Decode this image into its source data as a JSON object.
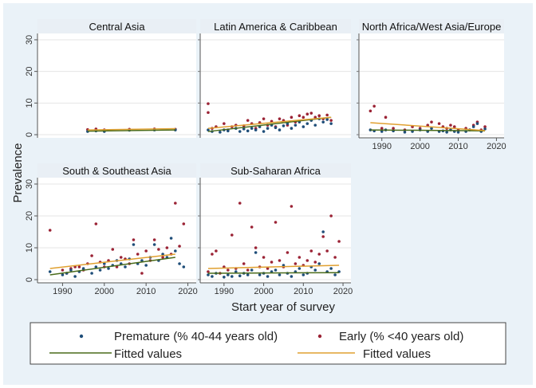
{
  "chart_data": {
    "type": "scatter",
    "ylabel": "Prevalence",
    "xlabel": "Start year of survey",
    "xlim": [
      1984,
      2022
    ],
    "ylim": [
      -1,
      32
    ],
    "x_ticks": [
      1990,
      2000,
      2010,
      2020
    ],
    "x_tick_labels": [
      "1990",
      "2000",
      "2010",
      "2020"
    ],
    "y_ticks": [
      0,
      10,
      20,
      30
    ],
    "y_tick_labels": [
      "0",
      "10",
      "20",
      "30"
    ],
    "legend": {
      "placement": "bottom",
      "entries": [
        {
          "label": "Premature (% 40-44 years old)",
          "kind": "marker",
          "color": "#1f4e79"
        },
        {
          "label": "Early (% <40 years old)",
          "kind": "marker",
          "color": "#9b2335"
        },
        {
          "label": "Fitted values",
          "kind": "line",
          "color": "#4a6b1a"
        },
        {
          "label": "Fitted values",
          "kind": "line",
          "color": "#e0a030"
        }
      ]
    },
    "colors": {
      "premature": "#1f4e79",
      "early": "#9b2335",
      "fit_premature": "#4a6b1a",
      "fit_early": "#e0a030",
      "panel_header": "#e9eff5",
      "outer_bg": "#eaf2f8"
    },
    "panels": [
      {
        "title": "Central Asia",
        "premature": [
          [
            1996,
            1.0
          ],
          [
            1998,
            1.2
          ],
          [
            2000,
            1.0
          ],
          [
            2006,
            1.4
          ],
          [
            2012,
            1.5
          ],
          [
            2017,
            1.5
          ]
        ],
        "early": [
          [
            1996,
            1.6
          ],
          [
            1998,
            1.8
          ],
          [
            2000,
            1.5
          ],
          [
            2006,
            1.7
          ],
          [
            2012,
            1.8
          ],
          [
            2017,
            1.7
          ]
        ],
        "fit_premature": [
          [
            1996,
            1.1
          ],
          [
            2017,
            1.5
          ]
        ],
        "fit_early": [
          [
            1996,
            1.5
          ],
          [
            2017,
            1.9
          ]
        ]
      },
      {
        "title": "Latin America & Caribbean",
        "premature": [
          [
            1986,
            1.5
          ],
          [
            1987,
            1.0
          ],
          [
            1989,
            0.8
          ],
          [
            1990,
            1.5
          ],
          [
            1991,
            1.2
          ],
          [
            1993,
            2.0
          ],
          [
            1994,
            1.0
          ],
          [
            1995,
            1.8
          ],
          [
            1996,
            1.2
          ],
          [
            1997,
            2.0
          ],
          [
            1998,
            1.5
          ],
          [
            1999,
            2.5
          ],
          [
            2000,
            1.0
          ],
          [
            2001,
            2.0
          ],
          [
            2002,
            3.0
          ],
          [
            2003,
            2.2
          ],
          [
            2004,
            1.5
          ],
          [
            2005,
            2.8
          ],
          [
            2006,
            3.5
          ],
          [
            2007,
            2.0
          ],
          [
            2008,
            3.0
          ],
          [
            2009,
            4.0
          ],
          [
            2010,
            2.5
          ],
          [
            2011,
            3.5
          ],
          [
            2012,
            4.5
          ],
          [
            2013,
            3.0
          ],
          [
            2014,
            5.0
          ],
          [
            2015,
            4.0
          ],
          [
            2016,
            4.8
          ],
          [
            2017,
            3.5
          ]
        ],
        "early": [
          [
            1986,
            9.8
          ],
          [
            1986,
            7.0
          ],
          [
            1987,
            2.0
          ],
          [
            1988,
            2.5
          ],
          [
            1990,
            3.5
          ],
          [
            1991,
            1.5
          ],
          [
            1992,
            2.5
          ],
          [
            1993,
            3.0
          ],
          [
            1995,
            2.8
          ],
          [
            1996,
            4.5
          ],
          [
            1997,
            3.5
          ],
          [
            1998,
            2.0
          ],
          [
            1999,
            3.8
          ],
          [
            2000,
            5.0
          ],
          [
            2001,
            3.0
          ],
          [
            2002,
            4.2
          ],
          [
            2003,
            2.5
          ],
          [
            2004,
            5.0
          ],
          [
            2005,
            4.5
          ],
          [
            2006,
            3.0
          ],
          [
            2007,
            5.5
          ],
          [
            2008,
            4.0
          ],
          [
            2009,
            6.0
          ],
          [
            2010,
            5.5
          ],
          [
            2011,
            6.5
          ],
          [
            2012,
            6.8
          ],
          [
            2013,
            5.5
          ],
          [
            2014,
            6.0
          ],
          [
            2015,
            5.0
          ],
          [
            2016,
            6.2
          ],
          [
            2017,
            4.5
          ]
        ],
        "fit_premature": [
          [
            1986,
            1.0
          ],
          [
            2017,
            5.5
          ]
        ],
        "fit_early": [
          [
            1986,
            2.0
          ],
          [
            2017,
            5.5
          ]
        ]
      },
      {
        "title": "North Africa/West Asia/Europe",
        "premature": [
          [
            1987,
            1.5
          ],
          [
            1988,
            1.2
          ],
          [
            1990,
            1.0
          ],
          [
            1991,
            1.5
          ],
          [
            1993,
            1.2
          ],
          [
            1996,
            0.8
          ],
          [
            1998,
            1.0
          ],
          [
            2000,
            1.5
          ],
          [
            2002,
            1.0
          ],
          [
            2003,
            2.0
          ],
          [
            2005,
            1.0
          ],
          [
            2006,
            1.2
          ],
          [
            2007,
            0.8
          ],
          [
            2008,
            1.5
          ],
          [
            2009,
            1.0
          ],
          [
            2010,
            0.8
          ],
          [
            2012,
            1.0
          ],
          [
            2013,
            1.5
          ],
          [
            2014,
            2.5
          ],
          [
            2015,
            3.5
          ],
          [
            2016,
            1.0
          ],
          [
            2017,
            1.8
          ]
        ],
        "early": [
          [
            1987,
            7.5
          ],
          [
            1988,
            9.0
          ],
          [
            1990,
            2.0
          ],
          [
            1991,
            5.5
          ],
          [
            1993,
            2.0
          ],
          [
            1996,
            1.5
          ],
          [
            1998,
            2.5
          ],
          [
            2000,
            2.0
          ],
          [
            2002,
            3.0
          ],
          [
            2003,
            4.0
          ],
          [
            2005,
            3.5
          ],
          [
            2006,
            2.5
          ],
          [
            2007,
            2.0
          ],
          [
            2008,
            3.0
          ],
          [
            2009,
            2.5
          ],
          [
            2010,
            1.5
          ],
          [
            2012,
            2.0
          ],
          [
            2013,
            1.5
          ],
          [
            2014,
            3.0
          ],
          [
            2015,
            4.0
          ],
          [
            2016,
            1.5
          ],
          [
            2017,
            2.5
          ]
        ],
        "fit_premature": [
          [
            1987,
            1.5
          ],
          [
            2017,
            1.2
          ]
        ],
        "fit_early": [
          [
            1987,
            3.8
          ],
          [
            2017,
            1.3
          ]
        ]
      },
      {
        "title": "South & Southeast Asia",
        "premature": [
          [
            1987,
            2.5
          ],
          [
            1990,
            1.5
          ],
          [
            1991,
            2.0
          ],
          [
            1992,
            3.0
          ],
          [
            1993,
            1.0
          ],
          [
            1994,
            2.5
          ],
          [
            1995,
            3.5
          ],
          [
            1997,
            2.0
          ],
          [
            1998,
            4.0
          ],
          [
            1999,
            3.0
          ],
          [
            2000,
            5.0
          ],
          [
            2001,
            3.5
          ],
          [
            2002,
            4.5
          ],
          [
            2003,
            6.0
          ],
          [
            2004,
            5.0
          ],
          [
            2005,
            4.0
          ],
          [
            2006,
            6.5
          ],
          [
            2007,
            11.0
          ],
          [
            2008,
            5.0
          ],
          [
            2009,
            6.0
          ],
          [
            2010,
            4.5
          ],
          [
            2011,
            7.0
          ],
          [
            2012,
            11.0
          ],
          [
            2013,
            6.0
          ],
          [
            2014,
            8.0
          ],
          [
            2015,
            7.0
          ],
          [
            2016,
            13.0
          ],
          [
            2017,
            9.0
          ],
          [
            2018,
            5.0
          ],
          [
            2019,
            4.0
          ]
        ],
        "early": [
          [
            1987,
            15.5
          ],
          [
            1990,
            3.0
          ],
          [
            1991,
            2.0
          ],
          [
            1992,
            3.5
          ],
          [
            1993,
            4.0
          ],
          [
            1994,
            4.0
          ],
          [
            1995,
            3.0
          ],
          [
            1996,
            5.0
          ],
          [
            1997,
            7.5
          ],
          [
            1998,
            17.5
          ],
          [
            1999,
            5.5
          ],
          [
            2000,
            4.0
          ],
          [
            2001,
            6.0
          ],
          [
            2002,
            9.5
          ],
          [
            2003,
            4.0
          ],
          [
            2004,
            7.0
          ],
          [
            2005,
            6.5
          ],
          [
            2006,
            5.0
          ],
          [
            2007,
            12.5
          ],
          [
            2008,
            8.0
          ],
          [
            2009,
            2.0
          ],
          [
            2010,
            9.0
          ],
          [
            2011,
            6.0
          ],
          [
            2012,
            12.5
          ],
          [
            2013,
            9.5
          ],
          [
            2014,
            7.0
          ],
          [
            2015,
            10.0
          ],
          [
            2016,
            8.0
          ],
          [
            2017,
            24.0
          ],
          [
            2018,
            10.5
          ],
          [
            2019,
            17.5
          ]
        ],
        "fit_premature": [
          [
            1987,
            1.5
          ],
          [
            2017,
            7.0
          ]
        ],
        "fit_early": [
          [
            1987,
            3.5
          ],
          [
            2017,
            8.0
          ]
        ]
      },
      {
        "title": "Sub-Saharan Africa",
        "premature": [
          [
            1986,
            1.5
          ],
          [
            1987,
            1.0
          ],
          [
            1988,
            2.0
          ],
          [
            1990,
            0.8
          ],
          [
            1991,
            1.5
          ],
          [
            1992,
            1.0
          ],
          [
            1993,
            2.5
          ],
          [
            1994,
            1.2
          ],
          [
            1995,
            2.0
          ],
          [
            1996,
            1.5
          ],
          [
            1997,
            3.0
          ],
          [
            1998,
            8.5
          ],
          [
            1999,
            1.5
          ],
          [
            2000,
            2.0
          ],
          [
            2001,
            1.0
          ],
          [
            2002,
            2.5
          ],
          [
            2003,
            3.0
          ],
          [
            2004,
            1.5
          ],
          [
            2005,
            4.5
          ],
          [
            2006,
            2.0
          ],
          [
            2007,
            1.0
          ],
          [
            2008,
            2.5
          ],
          [
            2009,
            3.5
          ],
          [
            2010,
            1.5
          ],
          [
            2011,
            2.0
          ],
          [
            2012,
            4.0
          ],
          [
            2013,
            3.0
          ],
          [
            2014,
            5.0
          ],
          [
            2015,
            15.0
          ],
          [
            2016,
            2.5
          ],
          [
            2017,
            3.5
          ],
          [
            2018,
            1.5
          ],
          [
            2019,
            2.5
          ]
        ],
        "early": [
          [
            1986,
            2.5
          ],
          [
            1987,
            8.0
          ],
          [
            1988,
            9.0
          ],
          [
            1989,
            2.0
          ],
          [
            1990,
            4.0
          ],
          [
            1991,
            3.0
          ],
          [
            1992,
            14.0
          ],
          [
            1993,
            3.5
          ],
          [
            1994,
            24.0
          ],
          [
            1995,
            5.0
          ],
          [
            1996,
            3.0
          ],
          [
            1997,
            16.5
          ],
          [
            1998,
            10.0
          ],
          [
            1999,
            4.0
          ],
          [
            2000,
            7.0
          ],
          [
            2001,
            3.5
          ],
          [
            2002,
            5.5
          ],
          [
            2003,
            18.0
          ],
          [
            2004,
            6.0
          ],
          [
            2005,
            4.0
          ],
          [
            2006,
            8.5
          ],
          [
            2007,
            23.0
          ],
          [
            2008,
            5.0
          ],
          [
            2009,
            7.0
          ],
          [
            2010,
            4.5
          ],
          [
            2011,
            6.0
          ],
          [
            2012,
            9.0
          ],
          [
            2013,
            5.5
          ],
          [
            2014,
            8.0
          ],
          [
            2015,
            13.5
          ],
          [
            2016,
            9.0
          ],
          [
            2017,
            20.0
          ],
          [
            2018,
            7.0
          ],
          [
            2019,
            12.0
          ]
        ],
        "fit_premature": [
          [
            1986,
            2.0
          ],
          [
            2019,
            2.2
          ]
        ],
        "fit_early": [
          [
            1986,
            3.5
          ],
          [
            2019,
            4.5
          ]
        ]
      }
    ]
  }
}
